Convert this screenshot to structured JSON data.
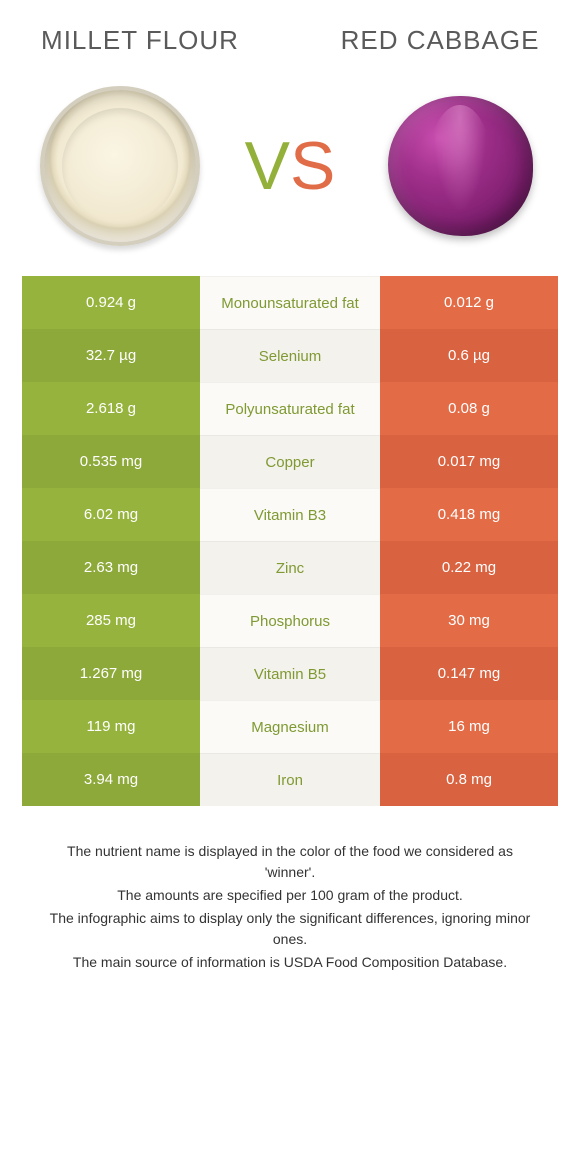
{
  "header": {
    "left_title": "Millet flour",
    "right_title": "Red cabbage",
    "vs_v": "V",
    "vs_s": "S"
  },
  "colors": {
    "left_a": "#96b43d",
    "left_b": "#8da93a",
    "right_a": "#e36c47",
    "right_b": "#d96240",
    "mid_a": "#fbfaf6",
    "mid_b": "#f4f2ec",
    "nutrient_winner_left": "#7f9a33",
    "nutrient_winner_right": "#d96240"
  },
  "rows": [
    {
      "nutrient": "Monounsaturated fat",
      "left": "0.924 g",
      "right": "0.012 g",
      "winner": "left"
    },
    {
      "nutrient": "Selenium",
      "left": "32.7 µg",
      "right": "0.6 µg",
      "winner": "left"
    },
    {
      "nutrient": "Polyunsaturated fat",
      "left": "2.618 g",
      "right": "0.08 g",
      "winner": "left"
    },
    {
      "nutrient": "Copper",
      "left": "0.535 mg",
      "right": "0.017 mg",
      "winner": "left"
    },
    {
      "nutrient": "Vitamin B3",
      "left": "6.02 mg",
      "right": "0.418 mg",
      "winner": "left"
    },
    {
      "nutrient": "Zinc",
      "left": "2.63 mg",
      "right": "0.22 mg",
      "winner": "left"
    },
    {
      "nutrient": "Phosphorus",
      "left": "285 mg",
      "right": "30 mg",
      "winner": "left"
    },
    {
      "nutrient": "Vitamin B5",
      "left": "1.267 mg",
      "right": "0.147 mg",
      "winner": "left"
    },
    {
      "nutrient": "Magnesium",
      "left": "119 mg",
      "right": "16 mg",
      "winner": "left"
    },
    {
      "nutrient": "Iron",
      "left": "3.94 mg",
      "right": "0.8 mg",
      "winner": "left"
    }
  ],
  "footnotes": [
    "The nutrient name is displayed in the color of the food we considered as 'winner'.",
    "The amounts are specified per 100 gram of the product.",
    "The infographic aims to display only the significant differences, ignoring minor ones.",
    "The main source of information is USDA Food Composition Database."
  ]
}
